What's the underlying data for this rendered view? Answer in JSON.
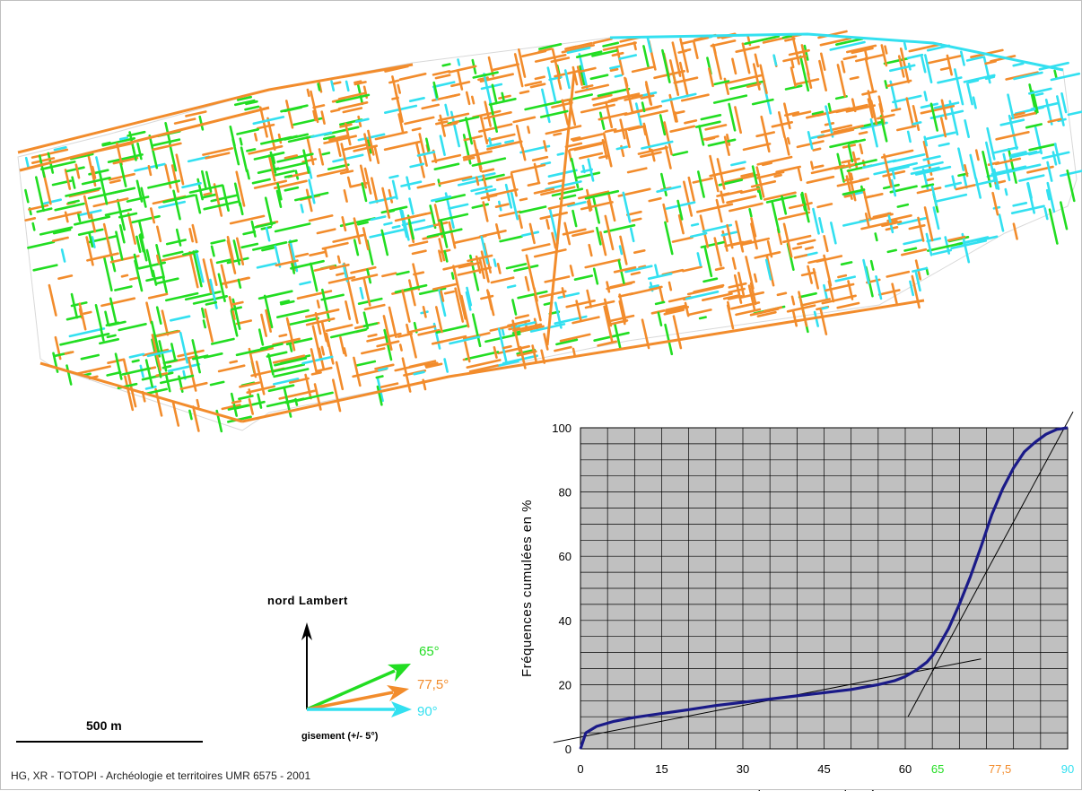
{
  "colors": {
    "green": "#22dd22",
    "orange": "#f28c2c",
    "cyan": "#33e0f0",
    "curve": "#1a1a88",
    "plot_bg": "#c0c0c0"
  },
  "legend": {
    "north_label": "nord Lambert",
    "bearing_caption": "gisement (+/- 5°)",
    "angles": [
      {
        "label": "65°",
        "color": "#22dd22"
      },
      {
        "label": "77,5°",
        "color": "#f28c2c"
      },
      {
        "label": "90°",
        "color": "#33e0f0"
      }
    ]
  },
  "scale_bar": {
    "label": "500 m"
  },
  "credit": "HG, XR - TOTOPI - Archéologie et territoires UMR 6575 - 2001",
  "chart_data": {
    "type": "line",
    "title": "",
    "xlabel": "Gisements en degrés",
    "ylabel": "Fréquences cumulées en %",
    "xlim": [
      0,
      90
    ],
    "ylim": [
      0,
      100
    ],
    "xticks": [
      {
        "value": 0,
        "label": "0",
        "color": "#000000"
      },
      {
        "value": 15,
        "label": "15",
        "color": "#000000"
      },
      {
        "value": 30,
        "label": "30",
        "color": "#000000"
      },
      {
        "value": 45,
        "label": "45",
        "color": "#000000"
      },
      {
        "value": 60,
        "label": "60",
        "color": "#000000"
      },
      {
        "value": 65,
        "label": "65",
        "color": "#22dd22"
      },
      {
        "value": 77.5,
        "label": "77,5",
        "color": "#f28c2c"
      },
      {
        "value": 90,
        "label": "90",
        "color": "#33e0f0"
      }
    ],
    "yticks": [
      0,
      20,
      40,
      60,
      80,
      100
    ],
    "grid": true,
    "series": [
      {
        "x": [
          0,
          1,
          3,
          6,
          10,
          15,
          20,
          25,
          30,
          35,
          40,
          45,
          50,
          55,
          58,
          60,
          62,
          64,
          65,
          66,
          68,
          70,
          72,
          74,
          76,
          78,
          80,
          82,
          84,
          86,
          88,
          90
        ],
        "y": [
          0,
          5,
          7,
          8.5,
          9.8,
          11,
          12.2,
          13.5,
          14.5,
          15.5,
          16.5,
          17.5,
          18.5,
          20,
          21.2,
          22.5,
          24.5,
          27,
          29,
          31.5,
          37.5,
          45,
          53.5,
          63,
          73,
          81,
          87.5,
          92.5,
          95.5,
          98,
          99.5,
          100
        ]
      }
    ],
    "tangent_lines": [
      {
        "x": [
          -5,
          74
        ],
        "y": [
          2,
          28
        ]
      },
      {
        "x": [
          60.5,
          91
        ],
        "y": [
          10,
          105
        ]
      }
    ]
  }
}
